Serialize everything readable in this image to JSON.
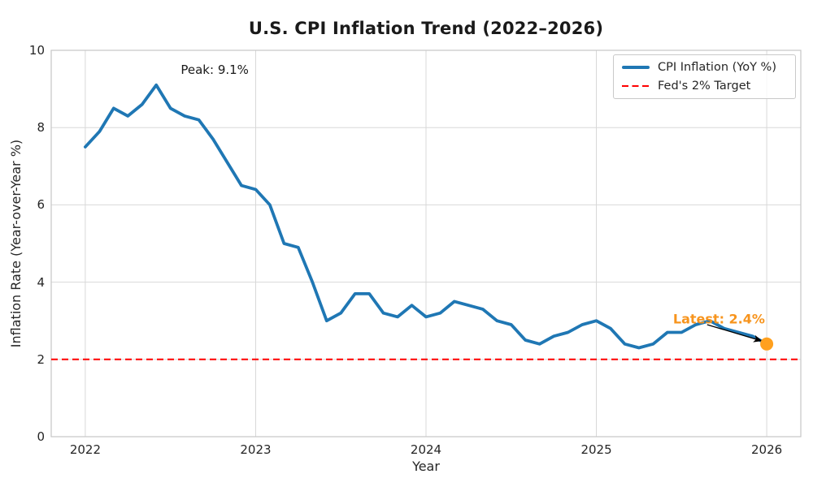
{
  "chart_data": {
    "type": "line",
    "title": "U.S. CPI Inflation Trend (2022–2026)",
    "xlabel": "Year",
    "ylabel": "Inflation Rate (Year-over-Year %)",
    "x_ticks": [
      "2022",
      "2023",
      "2024",
      "2025",
      "2026"
    ],
    "y_ticks": [
      0,
      2,
      4,
      6,
      8,
      10
    ],
    "ylim": [
      0,
      10
    ],
    "xlim_years": [
      2021.8,
      2026.2
    ],
    "grid": true,
    "legend_position": "upper right",
    "series": [
      {
        "name": "CPI Inflation (YoY %)",
        "color": "#1f77b4",
        "style": "solid",
        "start_year": 2022.0,
        "interval_years": 0.0833333,
        "values": [
          7.5,
          7.9,
          8.5,
          8.3,
          8.6,
          9.1,
          8.5,
          8.3,
          8.2,
          7.7,
          7.1,
          6.5,
          6.4,
          6.0,
          5.0,
          4.9,
          4.0,
          3.0,
          3.2,
          3.7,
          3.7,
          3.2,
          3.1,
          3.4,
          3.1,
          3.2,
          3.5,
          3.4,
          3.3,
          3.0,
          2.9,
          2.5,
          2.4,
          2.6,
          2.7,
          2.9,
          3.0,
          2.8,
          2.4,
          2.3,
          2.4,
          2.7,
          2.7,
          2.9,
          3.0,
          2.8,
          2.7,
          2.6,
          2.4
        ]
      },
      {
        "name": "Fed's 2% Target",
        "color": "#ff0000",
        "style": "dashed",
        "value": 2.0
      }
    ],
    "latest_marker": {
      "x": 2026.0,
      "value": 2.4,
      "color": "#ffa01e"
    },
    "annotations": [
      {
        "text": "Peak: 9.1%",
        "x": 2022.76,
        "y": 9.5,
        "color": "#1a1a1a"
      },
      {
        "text": "Latest: 2.4%",
        "x": 2025.72,
        "y": 3.05,
        "color": "#f7941d",
        "arrow": {
          "from": {
            "x": 2025.65,
            "y": 2.9
          },
          "to": {
            "x": 2025.97,
            "y": 2.48
          }
        }
      }
    ]
  }
}
